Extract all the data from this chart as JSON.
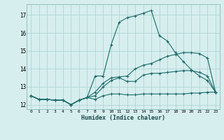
{
  "xlabel": "Humidex (Indice chaleur)",
  "bg_color": "#d7eeee",
  "grid_color": "#b0d4d4",
  "line_color": "#1a6b6b",
  "xlim": [
    -0.5,
    23.5
  ],
  "ylim": [
    11.75,
    17.6
  ],
  "yticks": [
    12,
    13,
    14,
    15,
    16,
    17
  ],
  "xtick_labels": [
    "0",
    "1",
    "2",
    "3",
    "4",
    "5",
    "6",
    "7",
    "8",
    "9",
    "10",
    "11",
    "12",
    "13",
    "14",
    "15",
    "16",
    "17",
    "18",
    "19",
    "20",
    "21",
    "22",
    "23"
  ],
  "series": [
    [
      12.5,
      12.3,
      12.3,
      12.25,
      12.25,
      12.0,
      12.25,
      12.4,
      12.3,
      12.5,
      12.6,
      12.6,
      12.55,
      12.55,
      12.6,
      12.6,
      12.6,
      12.6,
      12.6,
      12.6,
      12.65,
      12.65,
      12.7,
      12.7
    ],
    [
      12.5,
      12.3,
      12.3,
      12.25,
      12.25,
      12.0,
      12.25,
      12.4,
      12.5,
      13.0,
      13.35,
      13.5,
      13.3,
      13.3,
      13.65,
      13.75,
      13.75,
      13.8,
      13.85,
      13.9,
      13.9,
      13.8,
      13.6,
      12.7
    ],
    [
      12.5,
      12.3,
      12.3,
      12.25,
      12.25,
      12.0,
      12.25,
      12.4,
      12.7,
      13.2,
      13.5,
      13.55,
      13.6,
      14.0,
      14.2,
      14.3,
      14.5,
      14.7,
      14.8,
      14.9,
      14.9,
      14.85,
      14.6,
      12.7
    ],
    [
      12.5,
      12.3,
      12.3,
      12.25,
      12.25,
      12.0,
      12.25,
      12.4,
      13.6,
      13.6,
      15.35,
      16.6,
      16.85,
      16.95,
      17.1,
      17.25,
      15.85,
      15.55,
      14.9,
      14.4,
      13.95,
      13.6,
      13.35,
      12.7
    ]
  ]
}
